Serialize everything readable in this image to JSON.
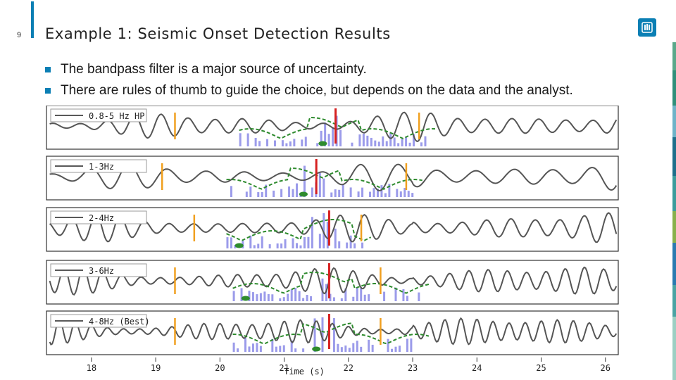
{
  "slide": {
    "number": "9",
    "title": "Example 1: Seismic Onset Detection Results"
  },
  "bullets": [
    "The bandpass filter is a major source of uncertainty.",
    "There are rules of thumb to guide the choice, but depends on the data and the analyst."
  ],
  "colors": {
    "accent": "#0b7fb4",
    "trace": "#555555",
    "green_dashed": "#2e8b2e",
    "histogram": "#8a8ae6",
    "orange_marker": "#f0a020",
    "red_marker": "#d62020"
  },
  "icons": {
    "logo": "sandia-thunderbird-icon"
  },
  "chart_data": {
    "type": "line",
    "xlabel": "Time (s)",
    "xlim": [
      17.3,
      26.2
    ],
    "x_ticks": [
      "18",
      "19",
      "20",
      "21",
      "22",
      "23",
      "24",
      "25",
      "26"
    ],
    "panels": [
      {
        "name": "0.8-5 Hz HP",
        "orange": [
          19.3,
          23.1
        ],
        "red": 21.8,
        "green_min": 21.6,
        "band": [
          20.3,
          23.2
        ],
        "period": 0.42
      },
      {
        "name": "1-3Hz",
        "orange": [
          19.1,
          22.9
        ],
        "red": 21.5,
        "green_min": 21.3,
        "band": [
          20.1,
          23.0
        ],
        "period": 0.6
      },
      {
        "name": "2-4Hz",
        "orange": [
          19.6,
          22.2
        ],
        "red": 21.7,
        "green_min": 20.3,
        "band": [
          20.1,
          22.2
        ],
        "period": 0.38
      },
      {
        "name": "3-6Hz",
        "orange": [
          19.3,
          22.5
        ],
        "red": 21.7,
        "green_min": 20.4,
        "band": [
          20.2,
          23.1
        ],
        "period": 0.3
      },
      {
        "name": "4-8Hz (Best)",
        "orange": [
          19.3,
          22.5
        ],
        "red": 21.7,
        "green_min": 21.5,
        "band": [
          20.2,
          23.1
        ],
        "period": 0.25
      }
    ]
  }
}
